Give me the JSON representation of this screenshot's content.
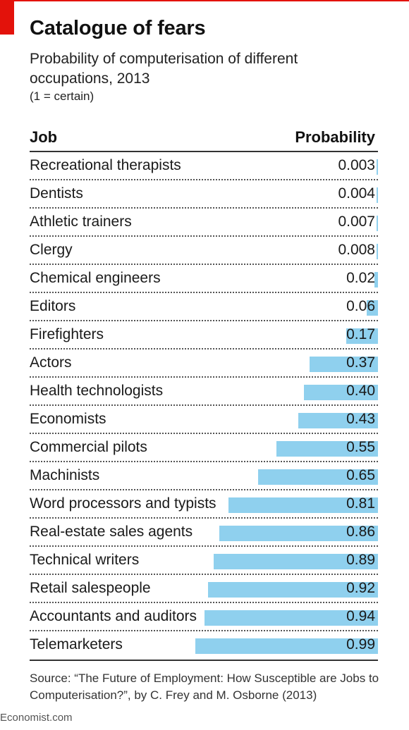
{
  "title": "Catalogue of fears",
  "subtitle": "Probability of computerisation of different occupations, 2013",
  "note": "(1 = certain)",
  "table_header": {
    "job": "Job",
    "probability": "Probability"
  },
  "source": "Source: “The Future of Employment: How Susceptible are Jobs to Computerisation?”, by C. Frey and M. Osborne (2013)",
  "brand": "Economist.com",
  "colors": {
    "bar": "#8fd0ee",
    "accent": "#e3120b"
  },
  "chart_data": {
    "type": "bar",
    "title": "Catalogue of fears",
    "subtitle": "Probability of computerisation of different occupations, 2013",
    "ylim": [
      0,
      1
    ],
    "categories": [
      "Recreational therapists",
      "Dentists",
      "Athletic trainers",
      "Clergy",
      "Chemical engineers",
      "Editors",
      "Firefighters",
      "Actors",
      "Health technologists",
      "Economists",
      "Commercial pilots",
      "Machinists",
      "Word processors and typists",
      "Real-estate sales agents",
      "Technical writers",
      "Retail salespeople",
      "Accountants and auditors",
      "Telemarketers"
    ],
    "labels": [
      "0.003",
      "0.004",
      "0.007",
      "0.008",
      "0.02",
      "0.06",
      "0.17",
      "0.37",
      "0.40",
      "0.43",
      "0.55",
      "0.65",
      "0.81",
      "0.86",
      "0.89",
      "0.92",
      "0.94",
      "0.99"
    ],
    "values": [
      0.003,
      0.004,
      0.007,
      0.008,
      0.02,
      0.06,
      0.17,
      0.37,
      0.4,
      0.43,
      0.55,
      0.65,
      0.81,
      0.86,
      0.89,
      0.92,
      0.94,
      0.99
    ]
  }
}
